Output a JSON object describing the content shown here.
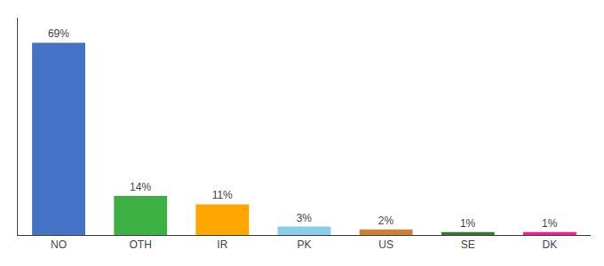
{
  "chart_data": {
    "type": "bar",
    "categories": [
      "NO",
      "OTH",
      "IR",
      "PK",
      "US",
      "SE",
      "DK"
    ],
    "values": [
      69,
      14,
      11,
      3,
      2,
      1,
      1
    ],
    "value_labels": [
      "69%",
      "14%",
      "11%",
      "3%",
      "2%",
      "1%",
      "1%"
    ],
    "colors": [
      "#4472c4",
      "#3cb043",
      "#ffa500",
      "#87ceeb",
      "#cd7f32",
      "#2d7a2d",
      "#ff1493"
    ],
    "ylim": [
      0,
      78
    ],
    "grid": false,
    "data_labels": true,
    "tick_labels": "x"
  }
}
